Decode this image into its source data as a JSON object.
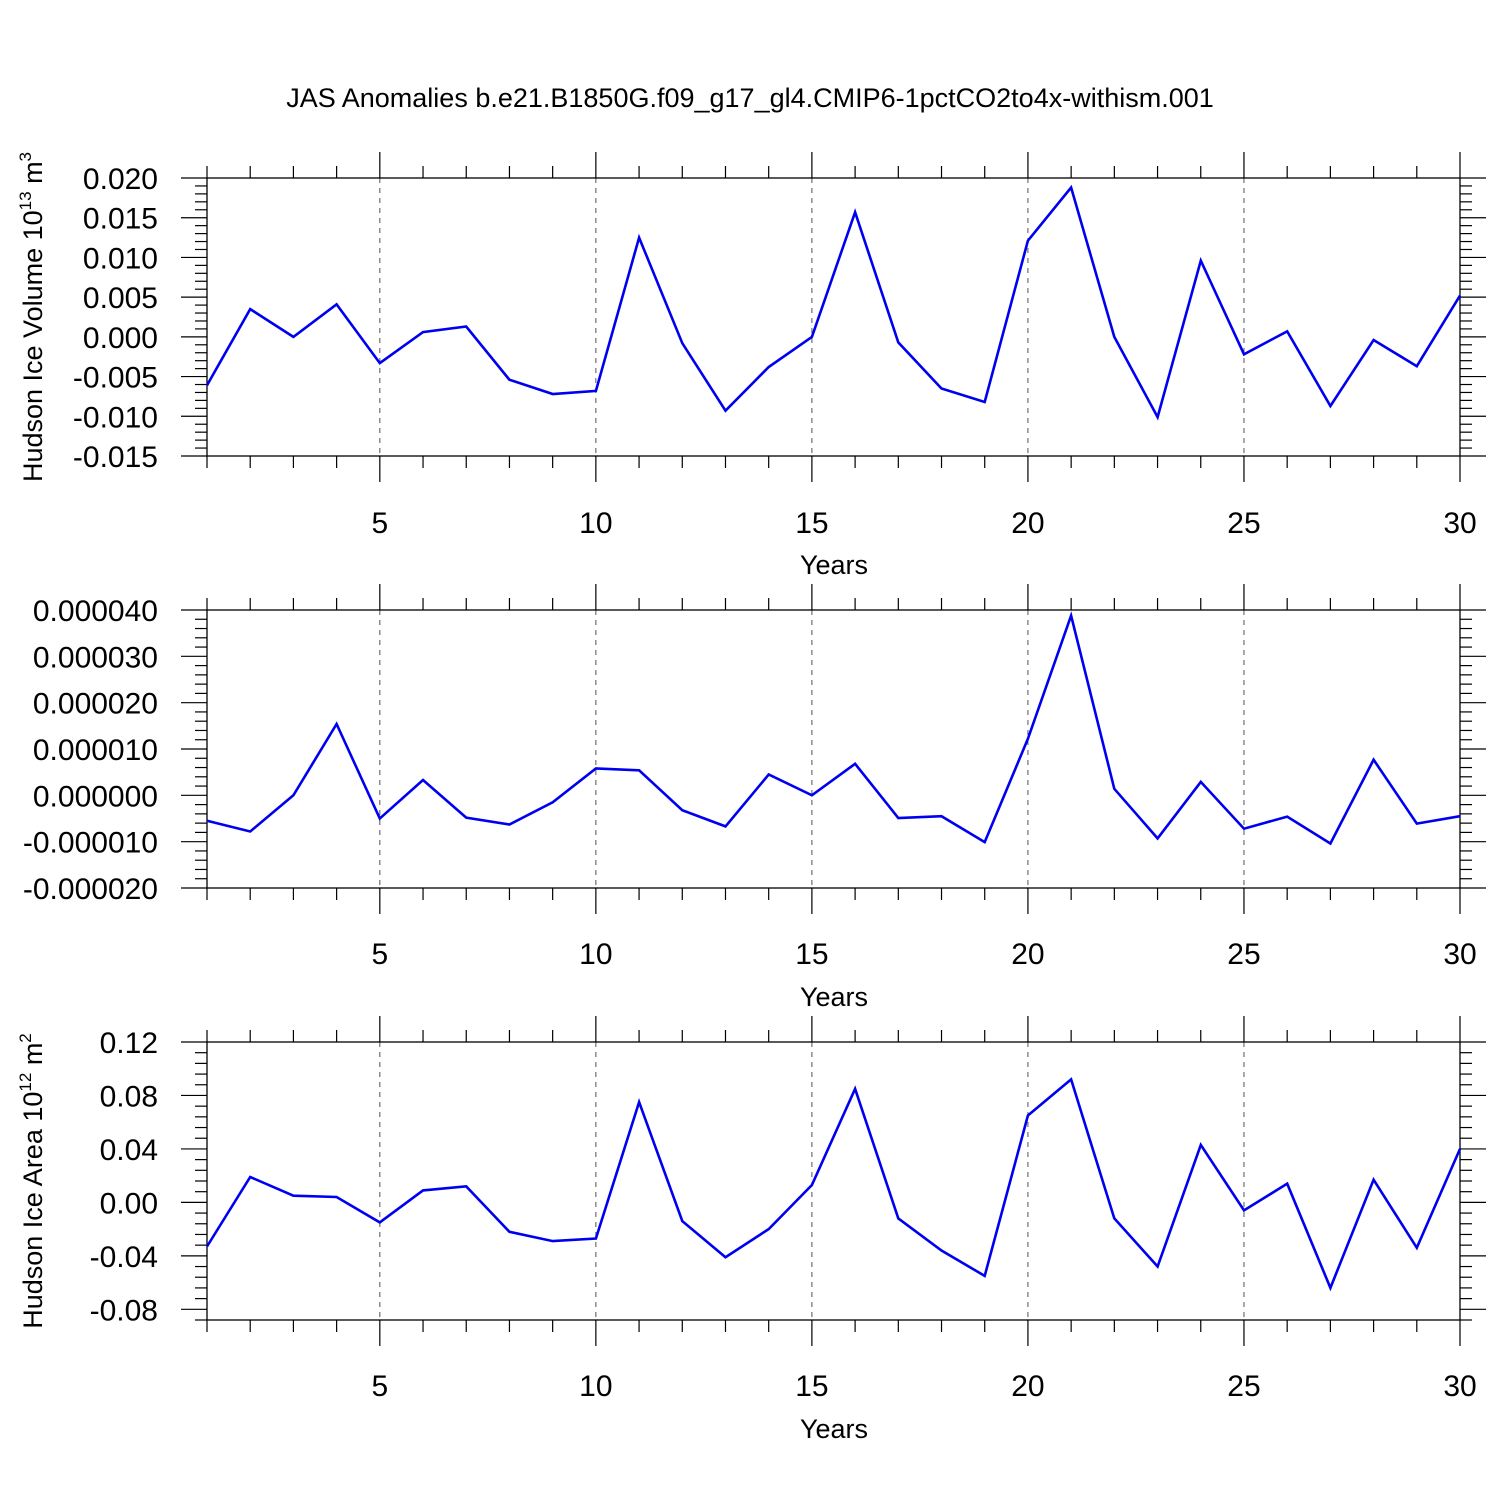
{
  "title": "JAS Anomalies b.e21.B1850G.f09_g17_gl4.CMIP6-1pctCO2to4x-withism.001",
  "colors": {
    "line": "#0000f0",
    "grid": "#555555",
    "axis": "#000000"
  },
  "chart_data": [
    {
      "type": "line",
      "xlabel": "Years",
      "ylabel": "Hudson Ice Volume 10",
      "ylabel_exp": "13",
      "ylabel_unit": " m",
      "ylabel_unit_exp": "3",
      "xlim": [
        1,
        30
      ],
      "ylim": [
        -0.015,
        0.02
      ],
      "xticks": [
        5,
        10,
        15,
        20,
        25,
        30
      ],
      "yticks": [
        -0.015,
        -0.01,
        -0.005,
        0.0,
        0.005,
        0.01,
        0.015,
        0.02
      ],
      "ytick_labels": [
        "-0.015",
        "-0.010",
        "-0.005",
        "0.000",
        "0.005",
        "0.010",
        "0.015",
        "0.020"
      ],
      "grid": "x-dashed",
      "series": [
        {
          "x": [
            1,
            2,
            3,
            4,
            5,
            6,
            7,
            8,
            9,
            10,
            11,
            12,
            13,
            14,
            15,
            16,
            17,
            18,
            19,
            20,
            21,
            22,
            23,
            24,
            25,
            26,
            27,
            28,
            29,
            30
          ],
          "values": [
            -0.0061,
            0.0035,
            0.0,
            0.0041,
            -0.0033,
            0.0006,
            0.0013,
            -0.0054,
            -0.0072,
            -0.0068,
            0.0125,
            -0.0008,
            -0.0093,
            -0.0038,
            0.0,
            0.0157,
            -0.0007,
            -0.0065,
            -0.0082,
            0.0121,
            0.0188,
            0.0,
            -0.0101,
            0.0096,
            -0.0022,
            0.0007,
            -0.0087,
            -0.0004,
            -0.0037,
            0.0052
          ]
        }
      ]
    },
    {
      "type": "line",
      "xlabel": "Years",
      "ylabel": "",
      "xlim": [
        1,
        30
      ],
      "ylim": [
        -2e-05,
        4e-05
      ],
      "xticks": [
        5,
        10,
        15,
        20,
        25,
        30
      ],
      "yticks": [
        -2e-05,
        -1e-05,
        0.0,
        1e-05,
        2e-05,
        3e-05,
        4e-05
      ],
      "ytick_labels": [
        "-0.000020",
        "-0.000010",
        "0.000000",
        "0.000010",
        "0.000020",
        "0.000030",
        "0.000040"
      ],
      "grid": "x-dashed",
      "series": [
        {
          "x": [
            1,
            2,
            3,
            4,
            5,
            6,
            7,
            8,
            9,
            10,
            11,
            12,
            13,
            14,
            15,
            16,
            17,
            18,
            19,
            20,
            21,
            22,
            23,
            24,
            25,
            26,
            27,
            28,
            29,
            30
          ],
          "values": [
            -5.5e-06,
            -7.8e-06,
            0.0,
            1.54e-05,
            -5e-06,
            3.3e-06,
            -4.8e-06,
            -6.3e-06,
            -1.5e-06,
            5.8e-06,
            5.4e-06,
            -3.2e-06,
            -6.7e-06,
            4.5e-06,
            0.0,
            6.8e-06,
            -4.9e-06,
            -4.5e-06,
            -1.01e-05,
            1.22e-05,
            3.88e-05,
            1.4e-06,
            -9.3e-06,
            2.9e-06,
            -7.2e-06,
            -4.6e-06,
            -1.04e-05,
            7.7e-06,
            -6.1e-06,
            -4.5e-06
          ]
        }
      ]
    },
    {
      "type": "line",
      "xlabel": "Years",
      "ylabel": "Hudson Ice Area 10",
      "ylabel_exp": "12",
      "ylabel_unit": " m",
      "ylabel_unit_exp": "2",
      "xlim": [
        1,
        30
      ],
      "ylim": [
        -0.088,
        0.12
      ],
      "xticks": [
        5,
        10,
        15,
        20,
        25,
        30
      ],
      "yticks": [
        -0.08,
        -0.04,
        0.0,
        0.04,
        0.08,
        0.12
      ],
      "ytick_labels": [
        "-0.08",
        "-0.04",
        "0.00",
        "0.04",
        "0.08",
        "0.12"
      ],
      "grid": "x-dashed",
      "series": [
        {
          "x": [
            1,
            2,
            3,
            4,
            5,
            6,
            7,
            8,
            9,
            10,
            11,
            12,
            13,
            14,
            15,
            16,
            17,
            18,
            19,
            20,
            21,
            22,
            23,
            24,
            25,
            26,
            27,
            28,
            29,
            30
          ],
          "values": [
            -0.033,
            0.019,
            0.005,
            0.004,
            -0.015,
            0.009,
            0.012,
            -0.022,
            -0.029,
            -0.027,
            0.075,
            -0.014,
            -0.041,
            -0.02,
            0.013,
            0.085,
            -0.012,
            -0.036,
            -0.055,
            0.065,
            0.092,
            -0.012,
            -0.048,
            0.043,
            -0.006,
            0.014,
            -0.064,
            0.017,
            -0.034,
            0.04
          ]
        }
      ]
    }
  ]
}
